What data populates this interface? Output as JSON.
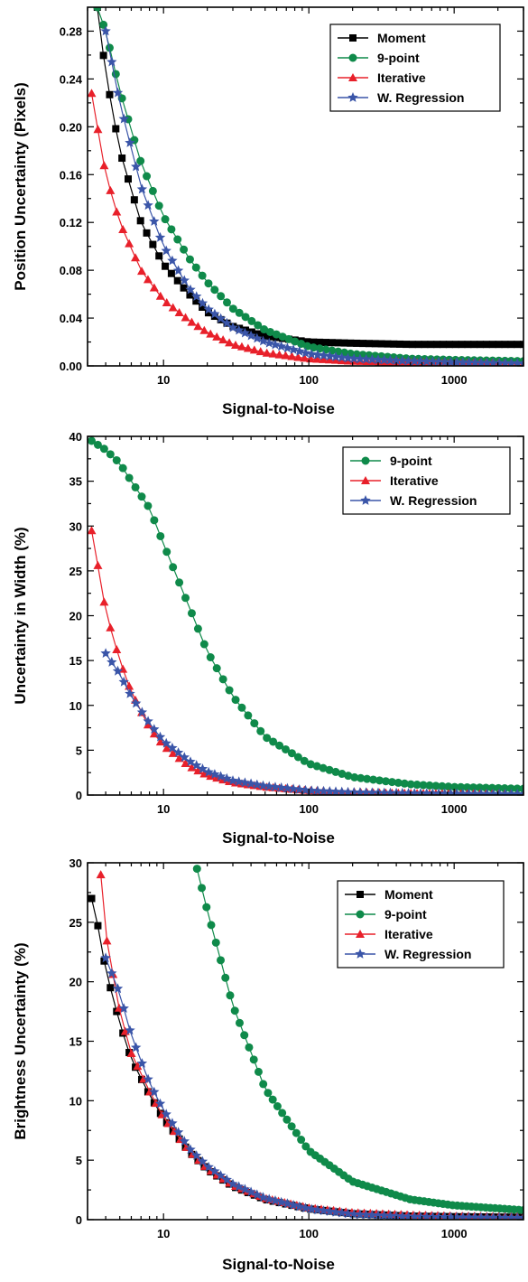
{
  "series_style": {
    "Moment": {
      "color": "#000000",
      "marker": "square"
    },
    "9-point": {
      "color": "#0f8a4a",
      "marker": "circle"
    },
    "Iterative": {
      "color": "#e8202a",
      "marker": "triangle"
    },
    "W. Regression": {
      "color": "#3a55a8",
      "marker": "star"
    }
  },
  "chart_data": [
    {
      "type": "scatter",
      "xscale": "log",
      "xlim": [
        3,
        3000
      ],
      "ylim": [
        0,
        0.3
      ],
      "xticks": [
        10,
        100,
        1000
      ],
      "xtick_labels": [
        "10",
        "100",
        "1000"
      ],
      "yticks": [
        0,
        0.04,
        0.08,
        0.12,
        0.16,
        0.2,
        0.24,
        0.28
      ],
      "ytick_labels": [
        "0.00",
        "0.04",
        "0.08",
        "0.12",
        "0.16",
        "0.20",
        "0.24",
        "0.28"
      ],
      "xlabel": "Signal-to-Noise",
      "ylabel": "Position Uncertainty (Pixels)",
      "legend_position": "top-right",
      "legend": [
        "Moment",
        "9-point",
        "Iterative",
        "W. Regression"
      ],
      "series": [
        {
          "name": "Moment",
          "x": [
            3.5,
            4,
            5,
            7,
            10,
            15,
            20,
            30,
            50,
            100,
            200,
            500,
            1000,
            3000
          ],
          "y": [
            0.3,
            0.245,
            0.18,
            0.12,
            0.085,
            0.06,
            0.045,
            0.033,
            0.025,
            0.02,
            0.019,
            0.018,
            0.018,
            0.018
          ]
        },
        {
          "name": "9-point",
          "x": [
            3.5,
            4,
            5,
            7,
            10,
            15,
            20,
            30,
            50,
            100,
            200,
            500,
            1000,
            3000
          ],
          "y": [
            0.3,
            0.28,
            0.23,
            0.17,
            0.125,
            0.09,
            0.07,
            0.048,
            0.03,
            0.016,
            0.01,
            0.006,
            0.005,
            0.004
          ]
        },
        {
          "name": "Iterative",
          "x": [
            3.2,
            4,
            5,
            7,
            10,
            15,
            20,
            30,
            50,
            100,
            200,
            500,
            1000,
            3000
          ],
          "y": [
            0.228,
            0.16,
            0.12,
            0.08,
            0.055,
            0.038,
            0.028,
            0.018,
            0.011,
            0.006,
            0.004,
            0.003,
            0.002,
            0.002
          ]
        },
        {
          "name": "W. Regression",
          "x": [
            4,
            5,
            7,
            10,
            15,
            20,
            30,
            50,
            100,
            200,
            500,
            1000,
            3000
          ],
          "y": [
            0.28,
            0.22,
            0.15,
            0.1,
            0.065,
            0.048,
            0.032,
            0.02,
            0.01,
            0.006,
            0.004,
            0.003,
            0.002
          ]
        }
      ]
    },
    {
      "type": "scatter",
      "xscale": "log",
      "xlim": [
        3,
        3000
      ],
      "ylim": [
        0,
        40
      ],
      "xticks": [
        10,
        100,
        1000
      ],
      "xtick_labels": [
        "10",
        "100",
        "1000"
      ],
      "yticks": [
        0,
        5,
        10,
        15,
        20,
        25,
        30,
        35,
        40
      ],
      "ytick_labels": [
        "0",
        "5",
        "10",
        "15",
        "20",
        "25",
        "30",
        "35",
        "40"
      ],
      "xlabel": "Signal-to-Noise",
      "ylabel": "Uncertainty in Width (%)",
      "legend_position": "top-right",
      "legend": [
        "9-point",
        "Iterative",
        "W. Regression"
      ],
      "series": [
        {
          "name": "9-point",
          "x": [
            3.2,
            4,
            5,
            6,
            8,
            10,
            15,
            20,
            30,
            50,
            100,
            200,
            500,
            1000,
            3000
          ],
          "y": [
            39.5,
            38.5,
            37,
            35,
            32,
            28,
            21,
            16,
            11,
            6.5,
            3.5,
            2,
            1.2,
            0.9,
            0.7
          ]
        },
        {
          "name": "Iterative",
          "x": [
            3.2,
            3.5,
            4,
            5,
            6,
            8,
            10,
            15,
            20,
            30,
            50,
            100,
            200,
            500,
            1000,
            3000
          ],
          "y": [
            29.5,
            26,
            20.5,
            15,
            11.5,
            7.5,
            5.5,
            3.2,
            2.2,
            1.4,
            0.9,
            0.5,
            0.3,
            0.2,
            0.15,
            0.1
          ]
        },
        {
          "name": "W. Regression",
          "x": [
            4,
            5,
            6,
            8,
            10,
            15,
            20,
            30,
            50,
            100,
            200,
            500,
            1000,
            3000
          ],
          "y": [
            15.8,
            13.5,
            11,
            8,
            6,
            3.8,
            2.6,
            1.6,
            1,
            0.5,
            0.3,
            0.2,
            0.15,
            0.1
          ]
        }
      ]
    },
    {
      "type": "scatter",
      "xscale": "log",
      "xlim": [
        3,
        3000
      ],
      "ylim": [
        0,
        30
      ],
      "xticks": [
        10,
        100,
        1000
      ],
      "xtick_labels": [
        "10",
        "100",
        "1000"
      ],
      "yticks": [
        0,
        5,
        10,
        15,
        20,
        25,
        30
      ],
      "ytick_labels": [
        "0",
        "5",
        "10",
        "15",
        "20",
        "25",
        "30"
      ],
      "xlabel": "Signal-to-Noise",
      "ylabel": "Brightness Uncertainty (%)",
      "legend_position": "top-right",
      "legend": [
        "Moment",
        "9-point",
        "Iterative",
        "W. Regression"
      ],
      "series": [
        {
          "name": "Moment",
          "x": [
            3.2,
            3.5,
            4,
            5,
            6,
            8,
            10,
            15,
            20,
            30,
            50,
            100,
            200,
            500,
            1000,
            3000
          ],
          "y": [
            27,
            25,
            21,
            16.5,
            13.5,
            10.5,
            8.5,
            5.7,
            4.2,
            2.8,
            1.7,
            0.9,
            0.5,
            0.3,
            0.25,
            0.2
          ]
        },
        {
          "name": "9-point",
          "x": [
            17,
            20,
            30,
            50,
            100,
            200,
            500,
            1000,
            3000
          ],
          "y": [
            29.5,
            26,
            18,
            11,
            5.8,
            3.2,
            1.7,
            1.2,
            0.8
          ]
        },
        {
          "name": "Iterative",
          "x": [
            3.7,
            4,
            5,
            6,
            8,
            10,
            15,
            20,
            30,
            50,
            100,
            200,
            500,
            1000,
            3000
          ],
          "y": [
            29,
            24,
            17.5,
            14,
            10.8,
            8.6,
            5.8,
            4.3,
            2.9,
            1.8,
            1,
            0.6,
            0.4,
            0.3,
            0.25
          ]
        },
        {
          "name": "W. Regression",
          "x": [
            4,
            5,
            6,
            8,
            10,
            15,
            20,
            30,
            50,
            100,
            200,
            500,
            1000,
            3000
          ],
          "y": [
            22,
            19,
            15.5,
            11.5,
            9.2,
            6,
            4.5,
            3,
            1.8,
            0.9,
            0.45,
            0.25,
            0.2,
            0.15
          ]
        }
      ]
    }
  ]
}
